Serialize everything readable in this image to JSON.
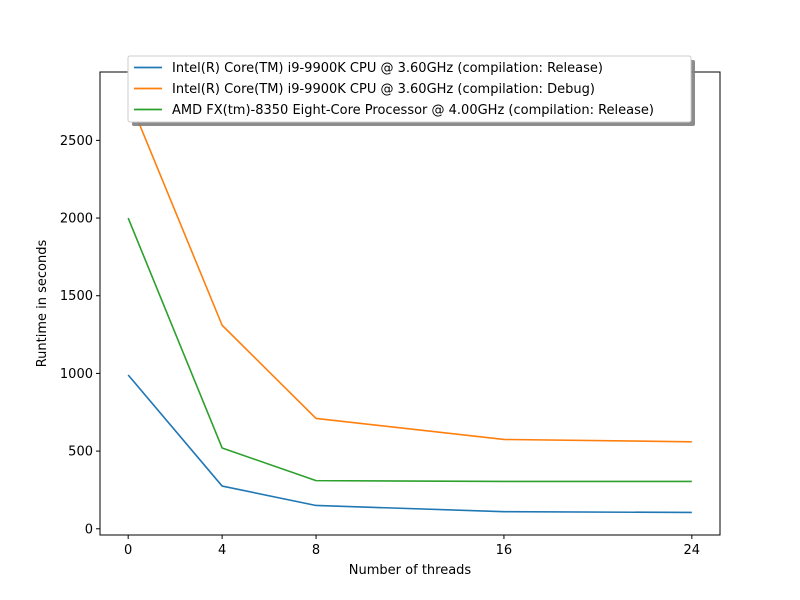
{
  "chart_data": {
    "type": "line",
    "xlabel": "Number of threads",
    "ylabel": "Runtime in seconds",
    "x": [
      0,
      4,
      8,
      16,
      24
    ],
    "xticks": [
      "0",
      "4",
      "8",
      "16",
      "24"
    ],
    "yticks": [
      "0",
      "500",
      "1000",
      "1500",
      "2000",
      "2500"
    ],
    "xlim": [
      -1.2,
      25.2
    ],
    "ylim": [
      -40,
      2940
    ],
    "grid": false,
    "legend_position": "upper-center",
    "series": [
      {
        "name": "Intel(R) Core(TM) i9-9900K CPU @ 3.60GHz (compilation: Release)",
        "color": "#1f77b4",
        "values": [
          990,
          275,
          150,
          110,
          105
        ]
      },
      {
        "name": "Intel(R) Core(TM) i9-9900K CPU @ 3.60GHz (compilation: Debug)",
        "color": "#ff7f0e",
        "values": [
          2780,
          1310,
          710,
          575,
          560
        ]
      },
      {
        "name": "AMD FX(tm)-8350 Eight-Core Processor @ 4.00GHz (compilation: Release)",
        "color": "#2ca02c",
        "values": [
          2000,
          520,
          310,
          305,
          305
        ]
      }
    ]
  }
}
